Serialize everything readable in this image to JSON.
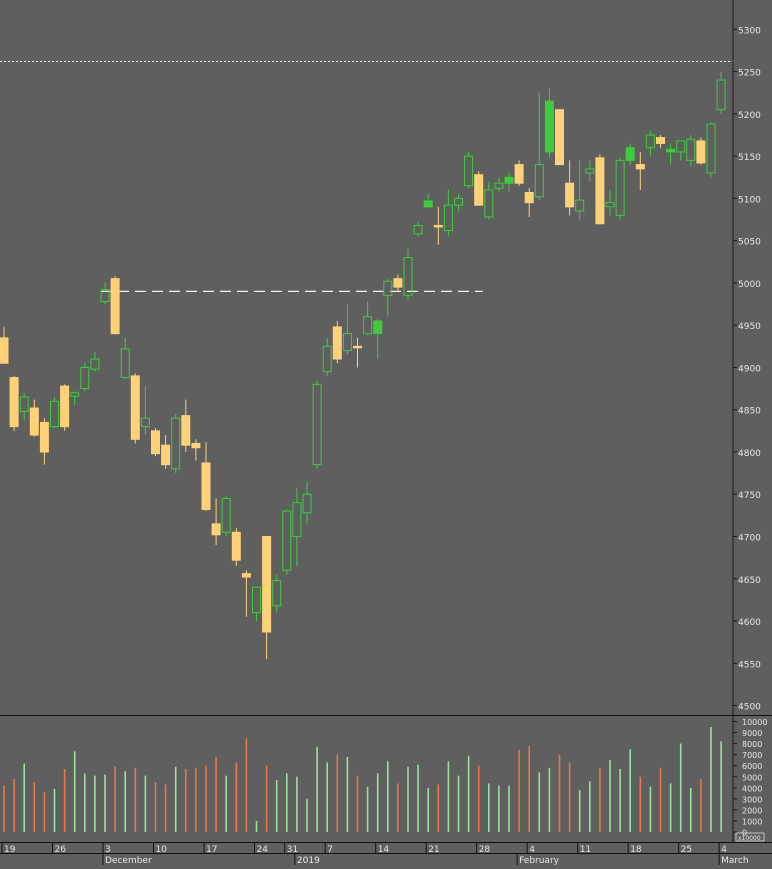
{
  "chart_data": {
    "type": "candlestick",
    "price_axis": {
      "ylim": [
        4490,
        5330
      ],
      "ticks": [
        5300,
        5250,
        5200,
        5150,
        5100,
        5050,
        5000,
        4950,
        4900,
        4850,
        4800,
        4750,
        4700,
        4650,
        4600,
        4550,
        4500
      ]
    },
    "volume_axis": {
      "ylim": [
        0,
        10500
      ],
      "ticks": [
        10000,
        9000,
        8000,
        7000,
        6000,
        5000,
        4000,
        3000,
        2000,
        1000,
        0
      ],
      "unit_label": "x10000"
    },
    "reference_lines": {
      "dotted_level": 5262,
      "dashed_level": 4990
    },
    "x_axis": {
      "day_ticks": [
        {
          "i": 0,
          "label": "19"
        },
        {
          "i": 5,
          "label": "26"
        },
        {
          "i": 10,
          "label": "3"
        },
        {
          "i": 15,
          "label": "10"
        },
        {
          "i": 20,
          "label": "17"
        },
        {
          "i": 25,
          "label": "24"
        },
        {
          "i": 28,
          "label": "31"
        },
        {
          "i": 32,
          "label": "7"
        },
        {
          "i": 37,
          "label": "14"
        },
        {
          "i": 42,
          "label": "21"
        },
        {
          "i": 47,
          "label": "28"
        },
        {
          "i": 52,
          "label": "4"
        },
        {
          "i": 57,
          "label": "11"
        },
        {
          "i": 62,
          "label": "18"
        },
        {
          "i": 67,
          "label": "25"
        },
        {
          "i": 71,
          "label": "4"
        }
      ],
      "month_ticks": [
        {
          "i": 10,
          "label": "December"
        },
        {
          "i": 29,
          "label": "2019"
        },
        {
          "i": 51,
          "label": "February"
        },
        {
          "i": 71,
          "label": "March"
        }
      ]
    },
    "candles": [
      {
        "o": 4935,
        "h": 4948,
        "l": 4905,
        "c": 4905,
        "v": 4200,
        "up": false
      },
      {
        "o": 4888,
        "h": 4890,
        "l": 4825,
        "c": 4830,
        "v": 4800,
        "up": false
      },
      {
        "o": 4848,
        "h": 4870,
        "l": 4838,
        "c": 4865,
        "v": 6200,
        "up": true
      },
      {
        "o": 4852,
        "h": 4862,
        "l": 4818,
        "c": 4820,
        "v": 4500,
        "up": false
      },
      {
        "o": 4835,
        "h": 4840,
        "l": 4785,
        "c": 4800,
        "v": 3600,
        "up": false
      },
      {
        "o": 4830,
        "h": 4865,
        "l": 4828,
        "c": 4860,
        "v": 3900,
        "up": true
      },
      {
        "o": 4878,
        "h": 4880,
        "l": 4825,
        "c": 4830,
        "v": 5700,
        "up": false
      },
      {
        "o": 4866,
        "h": 4872,
        "l": 4855,
        "c": 4870,
        "v": 7300,
        "up": true
      },
      {
        "o": 4875,
        "h": 4905,
        "l": 4872,
        "c": 4900,
        "v": 5300,
        "up": true
      },
      {
        "o": 4898,
        "h": 4918,
        "l": 4895,
        "c": 4910,
        "v": 5100,
        "up": true
      },
      {
        "o": 4978,
        "h": 5000,
        "l": 4975,
        "c": 4992,
        "v": 5200,
        "up": true
      },
      {
        "o": 5005,
        "h": 5008,
        "l": 4945,
        "c": 4940,
        "v": 5900,
        "up": false
      },
      {
        "o": 4888,
        "h": 4935,
        "l": 4886,
        "c": 4922,
        "v": 5500,
        "up": true
      },
      {
        "o": 4890,
        "h": 4893,
        "l": 4810,
        "c": 4815,
        "v": 5800,
        "up": false
      },
      {
        "o": 4830,
        "h": 4878,
        "l": 4820,
        "c": 4840,
        "v": 5100,
        "up": true
      },
      {
        "o": 4825,
        "h": 4828,
        "l": 4795,
        "c": 4798,
        "v": 4500,
        "up": false
      },
      {
        "o": 4808,
        "h": 4820,
        "l": 4780,
        "c": 4785,
        "v": 4300,
        "up": false
      },
      {
        "o": 4780,
        "h": 4845,
        "l": 4775,
        "c": 4840,
        "v": 5900,
        "up": true
      },
      {
        "o": 4843,
        "h": 4862,
        "l": 4800,
        "c": 4808,
        "v": 5700,
        "up": false
      },
      {
        "o": 4810,
        "h": 4815,
        "l": 4790,
        "c": 4805,
        "v": 5800,
        "up": false
      },
      {
        "o": 4787,
        "h": 4812,
        "l": 4730,
        "c": 4732,
        "v": 6000,
        "up": false
      },
      {
        "o": 4715,
        "h": 4745,
        "l": 4690,
        "c": 4702,
        "v": 6800,
        "up": false
      },
      {
        "o": 4705,
        "h": 4748,
        "l": 4700,
        "c": 4745,
        "v": 5100,
        "up": true
      },
      {
        "o": 4705,
        "h": 4710,
        "l": 4665,
        "c": 4672,
        "v": 6300,
        "up": false
      },
      {
        "o": 4656,
        "h": 4660,
        "l": 4605,
        "c": 4652,
        "v": 8500,
        "up": false
      },
      {
        "o": 4610,
        "h": 4640,
        "l": 4600,
        "c": 4640,
        "v": 1000,
        "up": true
      },
      {
        "o": 4700,
        "h": 4700,
        "l": 4555,
        "c": 4587,
        "v": 6000,
        "up": false
      },
      {
        "o": 4618,
        "h": 4655,
        "l": 4610,
        "c": 4648,
        "v": 4700,
        "up": true
      },
      {
        "o": 4660,
        "h": 4732,
        "l": 4655,
        "c": 4730,
        "v": 5300,
        "up": true
      },
      {
        "o": 4700,
        "h": 4758,
        "l": 4665,
        "c": 4740,
        "v": 5000,
        "up": true
      },
      {
        "o": 4728,
        "h": 4765,
        "l": 4715,
        "c": 4750,
        "v": 3000,
        "up": true
      },
      {
        "o": 4785,
        "h": 4885,
        "l": 4780,
        "c": 4880,
        "v": 7700,
        "up": true
      },
      {
        "o": 4895,
        "h": 4935,
        "l": 4890,
        "c": 4925,
        "v": 6300,
        "up": true
      },
      {
        "o": 4948,
        "h": 4955,
        "l": 4905,
        "c": 4910,
        "v": 7000,
        "up": false
      },
      {
        "o": 4920,
        "h": 4975,
        "l": 4915,
        "c": 4940,
        "v": 6800,
        "up": true
      },
      {
        "o": 4925,
        "h": 4935,
        "l": 4900,
        "c": 4925,
        "v": 5100,
        "up": false
      },
      {
        "o": 4940,
        "h": 4978,
        "l": 4938,
        "c": 4960,
        "v": 4100,
        "up": true
      },
      {
        "o": 4955,
        "h": 4958,
        "l": 4910,
        "c": 4940,
        "v": 5300,
        "up": true
      },
      {
        "o": 4985,
        "h": 5005,
        "l": 4960,
        "c": 5002,
        "v": 6400,
        "up": true
      },
      {
        "o": 5005,
        "h": 5010,
        "l": 4990,
        "c": 4995,
        "v": 4400,
        "up": false
      },
      {
        "o": 4985,
        "h": 5040,
        "l": 4980,
        "c": 5030,
        "v": 5900,
        "up": true
      },
      {
        "o": 5058,
        "h": 5072,
        "l": 5055,
        "c": 5068,
        "v": 6100,
        "up": true
      },
      {
        "o": 5097,
        "h": 5105,
        "l": 5090,
        "c": 5090,
        "v": 4000,
        "up": true
      },
      {
        "o": 5068,
        "h": 5090,
        "l": 5045,
        "c": 5068,
        "v": 4300,
        "up": false
      },
      {
        "o": 5062,
        "h": 5110,
        "l": 5055,
        "c": 5092,
        "v": 6400,
        "up": true
      },
      {
        "o": 5092,
        "h": 5105,
        "l": 5085,
        "c": 5100,
        "v": 5100,
        "up": true
      },
      {
        "o": 5115,
        "h": 5155,
        "l": 5112,
        "c": 5150,
        "v": 6900,
        "up": true
      },
      {
        "o": 5128,
        "h": 5132,
        "l": 5095,
        "c": 5092,
        "v": 6000,
        "up": false
      },
      {
        "o": 5078,
        "h": 5120,
        "l": 5075,
        "c": 5110,
        "v": 4400,
        "up": true
      },
      {
        "o": 5112,
        "h": 5125,
        "l": 5108,
        "c": 5118,
        "v": 4200,
        "up": true
      },
      {
        "o": 5125,
        "h": 5130,
        "l": 5108,
        "c": 5118,
        "v": 4200,
        "up": true
      },
      {
        "o": 5140,
        "h": 5145,
        "l": 5115,
        "c": 5118,
        "v": 7400,
        "up": false
      },
      {
        "o": 5107,
        "h": 5112,
        "l": 5078,
        "c": 5095,
        "v": 7800,
        "up": false
      },
      {
        "o": 5102,
        "h": 5225,
        "l": 5098,
        "c": 5140,
        "v": 5400,
        "up": true
      },
      {
        "o": 5215,
        "h": 5230,
        "l": 5148,
        "c": 5155,
        "v": 5800,
        "up": true
      },
      {
        "o": 5205,
        "h": 5200,
        "l": 5140,
        "c": 5140,
        "v": 7000,
        "up": false
      },
      {
        "o": 5118,
        "h": 5145,
        "l": 5080,
        "c": 5090,
        "v": 6300,
        "up": false
      },
      {
        "o": 5085,
        "h": 5145,
        "l": 5075,
        "c": 5098,
        "v": 3800,
        "up": true
      },
      {
        "o": 5130,
        "h": 5145,
        "l": 5120,
        "c": 5135,
        "v": 4600,
        "up": true
      },
      {
        "o": 5148,
        "h": 5152,
        "l": 5075,
        "c": 5070,
        "v": 5800,
        "up": false
      },
      {
        "o": 5090,
        "h": 5110,
        "l": 5080,
        "c": 5095,
        "v": 6500,
        "up": true
      },
      {
        "o": 5080,
        "h": 5148,
        "l": 5075,
        "c": 5145,
        "v": 5700,
        "up": true
      },
      {
        "o": 5160,
        "h": 5165,
        "l": 5140,
        "c": 5145,
        "v": 7500,
        "up": true
      },
      {
        "o": 5140,
        "h": 5155,
        "l": 5110,
        "c": 5135,
        "v": 5000,
        "up": false
      },
      {
        "o": 5160,
        "h": 5180,
        "l": 5150,
        "c": 5175,
        "v": 4100,
        "up": true
      },
      {
        "o": 5172,
        "h": 5175,
        "l": 5160,
        "c": 5165,
        "v": 5800,
        "up": false
      },
      {
        "o": 5158,
        "h": 5165,
        "l": 5140,
        "c": 5155,
        "v": 4400,
        "up": true
      },
      {
        "o": 5155,
        "h": 5168,
        "l": 5145,
        "c": 5168,
        "v": 8000,
        "up": true
      },
      {
        "o": 5145,
        "h": 5175,
        "l": 5138,
        "c": 5170,
        "v": 4000,
        "up": true
      },
      {
        "o": 5168,
        "h": 5172,
        "l": 5140,
        "c": 5142,
        "v": 4800,
        "up": false
      },
      {
        "o": 5130,
        "h": 5190,
        "l": 5125,
        "c": 5188,
        "v": 9500,
        "up": true
      },
      {
        "o": 5205,
        "h": 5250,
        "l": 5200,
        "c": 5240,
        "v": 8200,
        "up": true
      }
    ]
  }
}
